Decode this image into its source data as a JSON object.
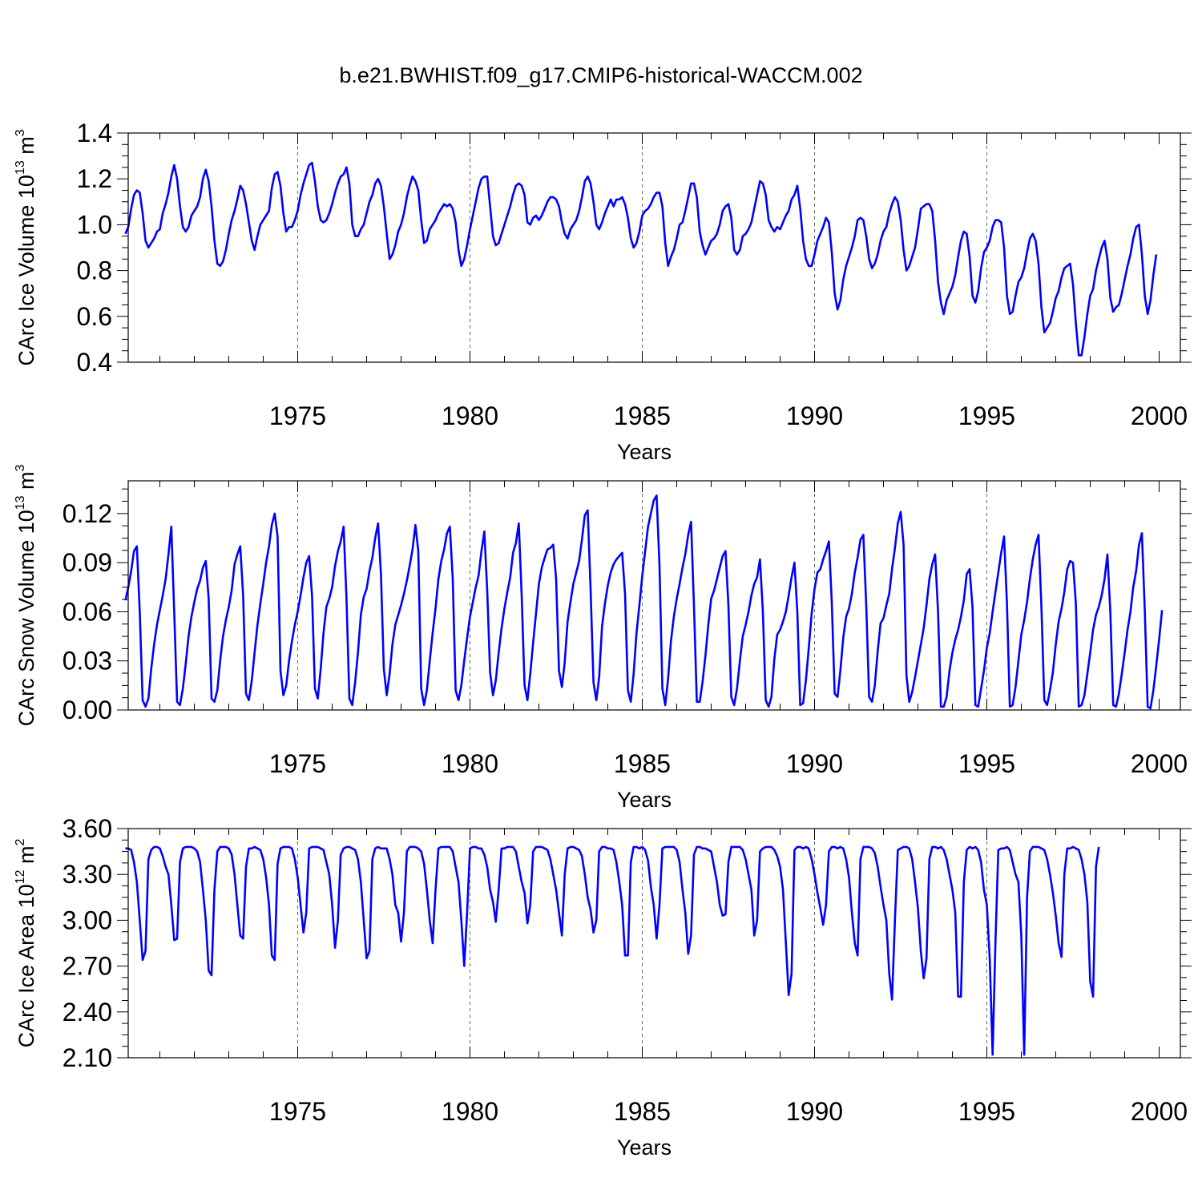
{
  "title": "b.e21.BWHIST.f09_g17.CMIP6-historical-WACCM.002",
  "colors": {
    "line": "#0000ff",
    "axis": "#000000",
    "grid": "#666666"
  },
  "chart_data": [
    {
      "type": "line",
      "ylabel_main": "CArc Ice Volume 10",
      "ylabel_exp": "13",
      "ylabel_unit": " m",
      "ylabel_unit_exp": "3",
      "xlabel": "Years",
      "xlim": [
        1970,
        2000
      ],
      "ylim": [
        0.4,
        1.4
      ],
      "x_ticks": [
        "1975",
        "1980",
        "1985",
        "1990",
        "1995",
        "2000"
      ],
      "y_ticks": [
        "0.4",
        "0.6",
        "0.8",
        "1.0",
        "1.2",
        "1.4"
      ],
      "grid_x": [
        1975,
        1980,
        1985,
        1990,
        1995
      ],
      "x_start": 1970.0,
      "x_step": 0.083333,
      "values": [
        0.96,
        0.99,
        1.07,
        1.13,
        1.15,
        1.14,
        1.05,
        0.93,
        0.9,
        0.92,
        0.94,
        0.97,
        0.98,
        1.05,
        1.09,
        1.14,
        1.21,
        1.26,
        1.2,
        1.08,
        0.99,
        0.97,
        0.99,
        1.04,
        1.06,
        1.08,
        1.12,
        1.2,
        1.24,
        1.19,
        1.08,
        0.93,
        0.83,
        0.82,
        0.84,
        0.89,
        0.96,
        1.02,
        1.06,
        1.11,
        1.17,
        1.15,
        1.09,
        1.01,
        0.93,
        0.89,
        0.95,
        1.0,
        1.02,
        1.04,
        1.06,
        1.16,
        1.22,
        1.23,
        1.17,
        1.05,
        0.97,
        0.99,
        0.99,
        1.02,
        1.06,
        1.13,
        1.18,
        1.22,
        1.26,
        1.27,
        1.19,
        1.08,
        1.02,
        1.01,
        1.02,
        1.05,
        1.09,
        1.14,
        1.18,
        1.21,
        1.22,
        1.25,
        1.18,
        1.0,
        0.95,
        0.95,
        0.98,
        1.0,
        1.05,
        1.1,
        1.13,
        1.18,
        1.2,
        1.17,
        1.08,
        0.96,
        0.85,
        0.87,
        0.91,
        0.97,
        1.0,
        1.05,
        1.12,
        1.17,
        1.21,
        1.19,
        1.15,
        1.02,
        0.92,
        0.93,
        0.98,
        1.0,
        1.02,
        1.05,
        1.07,
        1.09,
        1.08,
        1.09,
        1.07,
        1.01,
        0.89,
        0.82,
        0.85,
        0.91,
        0.98,
        1.04,
        1.1,
        1.16,
        1.2,
        1.21,
        1.21,
        1.08,
        0.95,
        0.91,
        0.92,
        0.96,
        1.0,
        1.04,
        1.08,
        1.13,
        1.17,
        1.18,
        1.17,
        1.13,
        1.01,
        1.0,
        1.03,
        1.04,
        1.02,
        1.04,
        1.07,
        1.1,
        1.12,
        1.12,
        1.11,
        1.08,
        1.01,
        0.96,
        0.94,
        0.98,
        1.0,
        1.02,
        1.06,
        1.12,
        1.19,
        1.21,
        1.18,
        1.1,
        1.0,
        0.98,
        1.01,
        1.05,
        1.08,
        1.11,
        1.08,
        1.11,
        1.11,
        1.12,
        1.09,
        1.03,
        0.94,
        0.9,
        0.92,
        0.97,
        1.04,
        1.06,
        1.07,
        1.09,
        1.12,
        1.14,
        1.14,
        1.08,
        0.92,
        0.82,
        0.86,
        0.89,
        0.94,
        1.0,
        1.01,
        1.06,
        1.12,
        1.18,
        1.18,
        1.12,
        0.97,
        0.91,
        0.87,
        0.9,
        0.93,
        0.94,
        0.96,
        1.0,
        1.06,
        1.08,
        1.09,
        1.03,
        0.89,
        0.87,
        0.89,
        0.95,
        0.96,
        0.98,
        1.01,
        1.07,
        1.13,
        1.19,
        1.18,
        1.13,
        1.02,
        0.99,
        0.97,
        0.99,
        0.98,
        1.01,
        1.04,
        1.06,
        1.11,
        1.13,
        1.17,
        1.07,
        0.93,
        0.85,
        0.82,
        0.82,
        0.87,
        0.93,
        0.96,
        0.99,
        1.03,
        1.01,
        0.88,
        0.7,
        0.63,
        0.67,
        0.76,
        0.82,
        0.86,
        0.9,
        0.95,
        1.02,
        1.03,
        1.02,
        0.95,
        0.85,
        0.81,
        0.83,
        0.87,
        0.93,
        0.97,
        0.99,
        1.05,
        1.09,
        1.12,
        1.1,
        1.02,
        0.89,
        0.8,
        0.82,
        0.86,
        0.9,
        0.98,
        1.07,
        1.08,
        1.09,
        1.09,
        1.06,
        0.93,
        0.75,
        0.66,
        0.61,
        0.67,
        0.7,
        0.73,
        0.78,
        0.86,
        0.93,
        0.97,
        0.96,
        0.86,
        0.69,
        0.66,
        0.71,
        0.81,
        0.88,
        0.9,
        0.93,
        0.99,
        1.02,
        1.02,
        1.01,
        0.9,
        0.69,
        0.61,
        0.62,
        0.69,
        0.75,
        0.77,
        0.81,
        0.88,
        0.94,
        0.96,
        0.93,
        0.83,
        0.64,
        0.53,
        0.55,
        0.57,
        0.62,
        0.68,
        0.71,
        0.77,
        0.81,
        0.82,
        0.83,
        0.74,
        0.57,
        0.43,
        0.43,
        0.51,
        0.61,
        0.69,
        0.72,
        0.8,
        0.85,
        0.9,
        0.93,
        0.85,
        0.68,
        0.62,
        0.64,
        0.65,
        0.7,
        0.76,
        0.82,
        0.87,
        0.94,
        0.99,
        1.0,
        0.87,
        0.69,
        0.61,
        0.67,
        0.78,
        0.87
      ]
    },
    {
      "type": "line",
      "ylabel_main": "CArc Snow Volume 10",
      "ylabel_exp": "13",
      "ylabel_unit": " m",
      "ylabel_unit_exp": "3",
      "xlabel": "Years",
      "xlim": [
        1970,
        2000
      ],
      "ylim": [
        0.0,
        0.14
      ],
      "x_ticks": [
        "1975",
        "1980",
        "1985",
        "1990",
        "1995",
        "2000"
      ],
      "y_ticks": [
        "0.00",
        "0.03",
        "0.06",
        "0.09",
        "0.12"
      ],
      "grid_x": [
        1975,
        1980,
        1985,
        1990,
        1995
      ],
      "x_start": 1970.0,
      "x_step": 0.083333,
      "values": [
        0.067,
        0.075,
        0.085,
        0.097,
        0.1,
        0.06,
        0.006,
        0.002,
        0.007,
        0.025,
        0.04,
        0.052,
        0.061,
        0.07,
        0.08,
        0.095,
        0.112,
        0.06,
        0.005,
        0.003,
        0.013,
        0.028,
        0.045,
        0.057,
        0.066,
        0.074,
        0.079,
        0.087,
        0.091,
        0.068,
        0.007,
        0.005,
        0.012,
        0.03,
        0.045,
        0.055,
        0.063,
        0.073,
        0.089,
        0.095,
        0.1,
        0.07,
        0.01,
        0.006,
        0.018,
        0.035,
        0.052,
        0.065,
        0.077,
        0.09,
        0.1,
        0.113,
        0.12,
        0.106,
        0.024,
        0.009,
        0.015,
        0.03,
        0.042,
        0.052,
        0.06,
        0.07,
        0.081,
        0.09,
        0.094,
        0.07,
        0.013,
        0.007,
        0.025,
        0.047,
        0.063,
        0.068,
        0.075,
        0.088,
        0.097,
        0.103,
        0.112,
        0.068,
        0.007,
        0.003,
        0.017,
        0.035,
        0.058,
        0.069,
        0.074,
        0.085,
        0.093,
        0.105,
        0.114,
        0.083,
        0.025,
        0.009,
        0.022,
        0.04,
        0.052,
        0.058,
        0.064,
        0.071,
        0.079,
        0.088,
        0.098,
        0.113,
        0.097,
        0.013,
        0.003,
        0.012,
        0.03,
        0.047,
        0.062,
        0.08,
        0.091,
        0.098,
        0.108,
        0.112,
        0.08,
        0.012,
        0.006,
        0.015,
        0.03,
        0.044,
        0.057,
        0.066,
        0.075,
        0.082,
        0.097,
        0.109,
        0.073,
        0.023,
        0.009,
        0.018,
        0.035,
        0.05,
        0.062,
        0.072,
        0.081,
        0.096,
        0.102,
        0.114,
        0.07,
        0.015,
        0.006,
        0.022,
        0.041,
        0.059,
        0.077,
        0.087,
        0.093,
        0.098,
        0.099,
        0.101,
        0.08,
        0.024,
        0.014,
        0.029,
        0.054,
        0.066,
        0.077,
        0.084,
        0.091,
        0.104,
        0.119,
        0.122,
        0.074,
        0.017,
        0.006,
        0.02,
        0.051,
        0.065,
        0.076,
        0.084,
        0.089,
        0.092,
        0.094,
        0.096,
        0.071,
        0.012,
        0.005,
        0.022,
        0.047,
        0.064,
        0.082,
        0.097,
        0.112,
        0.12,
        0.128,
        0.131,
        0.088,
        0.013,
        0.003,
        0.019,
        0.042,
        0.057,
        0.068,
        0.077,
        0.087,
        0.095,
        0.107,
        0.115,
        0.064,
        0.005,
        0.005,
        0.017,
        0.033,
        0.052,
        0.068,
        0.073,
        0.08,
        0.087,
        0.094,
        0.097,
        0.064,
        0.008,
        0.003,
        0.013,
        0.03,
        0.045,
        0.052,
        0.06,
        0.07,
        0.077,
        0.081,
        0.092,
        0.06,
        0.006,
        0.002,
        0.008,
        0.031,
        0.046,
        0.049,
        0.054,
        0.06,
        0.07,
        0.081,
        0.09,
        0.06,
        0.003,
        0.004,
        0.018,
        0.038,
        0.059,
        0.074,
        0.084,
        0.086,
        0.092,
        0.097,
        0.103,
        0.066,
        0.01,
        0.008,
        0.024,
        0.044,
        0.057,
        0.062,
        0.071,
        0.084,
        0.093,
        0.104,
        0.107,
        0.064,
        0.008,
        0.005,
        0.015,
        0.036,
        0.053,
        0.056,
        0.064,
        0.071,
        0.086,
        0.099,
        0.114,
        0.121,
        0.101,
        0.021,
        0.005,
        0.011,
        0.02,
        0.03,
        0.04,
        0.05,
        0.064,
        0.08,
        0.089,
        0.095,
        0.06,
        0.002,
        0.002,
        0.008,
        0.024,
        0.035,
        0.043,
        0.049,
        0.057,
        0.067,
        0.083,
        0.086,
        0.063,
        0.003,
        0.002,
        0.013,
        0.024,
        0.038,
        0.047,
        0.06,
        0.072,
        0.084,
        0.096,
        0.106,
        0.065,
        0.002,
        0.003,
        0.014,
        0.03,
        0.046,
        0.055,
        0.066,
        0.08,
        0.092,
        0.101,
        0.107,
        0.063,
        0.006,
        0.003,
        0.012,
        0.023,
        0.04,
        0.054,
        0.062,
        0.072,
        0.086,
        0.091,
        0.09,
        0.065,
        0.002,
        0.003,
        0.009,
        0.022,
        0.035,
        0.049,
        0.058,
        0.063,
        0.07,
        0.08,
        0.095,
        0.06,
        0.003,
        0.002,
        0.01,
        0.022,
        0.035,
        0.049,
        0.06,
        0.075,
        0.085,
        0.101,
        0.108,
        0.061,
        0.002,
        0.001,
        0.012,
        0.027,
        0.043,
        0.061
      ]
    },
    {
      "type": "line",
      "ylabel_main": "CArc Ice Area 10",
      "ylabel_exp": "12",
      "ylabel_unit": " m",
      "ylabel_unit_exp": "2",
      "xlabel": "Years",
      "xlim": [
        1970,
        2000
      ],
      "ylim": [
        2.1,
        3.6
      ],
      "x_ticks": [
        "1975",
        "1980",
        "1985",
        "1990",
        "1995",
        "2000"
      ],
      "y_ticks": [
        "2.10",
        "2.40",
        "2.70",
        "3.00",
        "3.30",
        "3.60"
      ],
      "grid_x": [
        1975,
        1980,
        1985,
        1990,
        1995
      ],
      "x_start": 1970.0,
      "x_step": 0.083333,
      "values": [
        3.47,
        3.47,
        3.46,
        3.38,
        3.25,
        3.0,
        2.74,
        2.8,
        3.4,
        3.46,
        3.48,
        3.48,
        3.47,
        3.42,
        3.35,
        3.3,
        3.1,
        2.87,
        2.88,
        3.38,
        3.47,
        3.48,
        3.48,
        3.48,
        3.47,
        3.45,
        3.38,
        3.2,
        3.0,
        2.67,
        2.64,
        3.2,
        3.45,
        3.48,
        3.48,
        3.48,
        3.47,
        3.43,
        3.3,
        3.1,
        2.9,
        2.88,
        3.35,
        3.47,
        3.47,
        3.48,
        3.47,
        3.46,
        3.4,
        3.28,
        3.1,
        2.77,
        2.74,
        3.37,
        3.47,
        3.48,
        3.48,
        3.48,
        3.47,
        3.4,
        3.28,
        3.1,
        2.92,
        3.05,
        3.47,
        3.48,
        3.48,
        3.48,
        3.47,
        3.46,
        3.38,
        3.3,
        3.1,
        2.82,
        3.0,
        3.43,
        3.47,
        3.48,
        3.48,
        3.47,
        3.46,
        3.4,
        3.25,
        3.0,
        2.75,
        2.8,
        3.4,
        3.47,
        3.48,
        3.47,
        3.47,
        3.47,
        3.4,
        3.3,
        3.1,
        3.05,
        2.86,
        3.05,
        3.45,
        3.48,
        3.48,
        3.48,
        3.47,
        3.45,
        3.37,
        3.2,
        3.0,
        2.85,
        3.2,
        3.47,
        3.48,
        3.48,
        3.48,
        3.48,
        3.45,
        3.35,
        3.25,
        3.0,
        2.7,
        3.05,
        3.47,
        3.48,
        3.48,
        3.47,
        3.47,
        3.43,
        3.35,
        3.2,
        3.12,
        2.99,
        3.2,
        3.47,
        3.47,
        3.48,
        3.48,
        3.48,
        3.45,
        3.35,
        3.25,
        3.18,
        2.98,
        3.1,
        3.45,
        3.48,
        3.48,
        3.48,
        3.47,
        3.46,
        3.4,
        3.3,
        3.2,
        3.05,
        2.9,
        3.3,
        3.47,
        3.48,
        3.48,
        3.47,
        3.46,
        3.42,
        3.3,
        3.15,
        3.07,
        2.92,
        3.0,
        3.45,
        3.48,
        3.48,
        3.47,
        3.47,
        3.46,
        3.38,
        3.25,
        3.1,
        2.77,
        2.77,
        3.38,
        3.48,
        3.48,
        3.47,
        3.48,
        3.46,
        3.39,
        3.22,
        3.1,
        2.88,
        3.1,
        3.47,
        3.48,
        3.48,
        3.48,
        3.48,
        3.46,
        3.38,
        3.2,
        3.05,
        2.78,
        2.9,
        3.43,
        3.48,
        3.48,
        3.47,
        3.47,
        3.46,
        3.45,
        3.35,
        3.25,
        3.1,
        3.03,
        3.04,
        3.38,
        3.48,
        3.48,
        3.48,
        3.48,
        3.46,
        3.4,
        3.3,
        3.2,
        2.9,
        3.0,
        3.45,
        3.47,
        3.48,
        3.48,
        3.48,
        3.46,
        3.42,
        3.35,
        3.2,
        2.85,
        2.51,
        2.65,
        3.46,
        3.48,
        3.48,
        3.47,
        3.48,
        3.47,
        3.4,
        3.3,
        3.18,
        3.08,
        2.97,
        3.1,
        3.45,
        3.48,
        3.48,
        3.47,
        3.48,
        3.47,
        3.4,
        3.28,
        3.05,
        2.85,
        2.77,
        3.4,
        3.48,
        3.48,
        3.48,
        3.47,
        3.44,
        3.35,
        3.22,
        3.1,
        3.0,
        2.65,
        2.48,
        3.0,
        3.46,
        3.47,
        3.48,
        3.48,
        3.47,
        3.4,
        3.25,
        3.08,
        2.8,
        2.62,
        2.75,
        3.4,
        3.48,
        3.48,
        3.47,
        3.48,
        3.46,
        3.4,
        3.3,
        3.2,
        3.05,
        2.5,
        2.5,
        3.25,
        3.46,
        3.48,
        3.47,
        3.48,
        3.46,
        3.38,
        3.2,
        3.1,
        2.75,
        2.12,
        2.85,
        3.46,
        3.47,
        3.47,
        3.48,
        3.46,
        3.38,
        3.3,
        3.25,
        2.9,
        2.12,
        3.15,
        3.45,
        3.48,
        3.48,
        3.48,
        3.47,
        3.46,
        3.4,
        3.3,
        3.18,
        3.03,
        2.85,
        2.76,
        3.3,
        3.47,
        3.47,
        3.48,
        3.47,
        3.46,
        3.4,
        3.3,
        3.12,
        2.6,
        2.5,
        3.35,
        3.48
      ]
    }
  ]
}
